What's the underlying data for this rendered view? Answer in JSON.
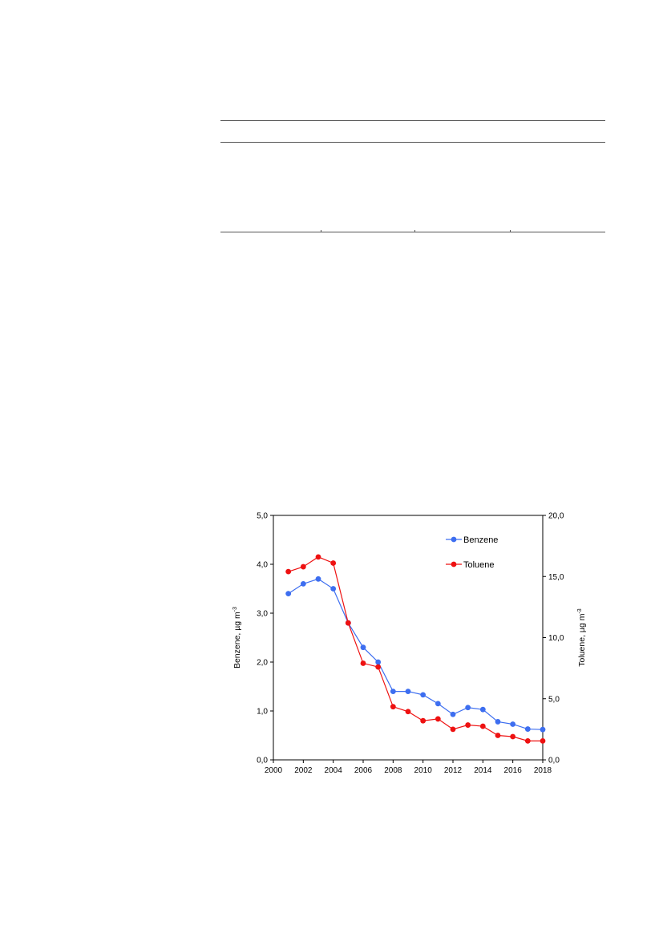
{
  "table": {
    "column_count": 4
  },
  "chart_data": {
    "type": "line",
    "x": [
      2001,
      2002,
      2003,
      2004,
      2005,
      2006,
      2007,
      2008,
      2009,
      2010,
      2011,
      2012,
      2013,
      2014,
      2015,
      2016,
      2017,
      2018
    ],
    "series": [
      {
        "name": "Benzene",
        "axis": "left",
        "color": "#3d6ef0",
        "values": [
          3.4,
          3.6,
          3.7,
          3.5,
          2.8,
          2.3,
          2.0,
          1.4,
          1.4,
          1.33,
          1.15,
          0.93,
          1.07,
          1.03,
          0.78,
          0.73,
          0.63,
          0.62
        ]
      },
      {
        "name": "Toluene",
        "axis": "right",
        "color": "#ee1111",
        "values": [
          15.4,
          15.8,
          16.6,
          16.1,
          11.2,
          7.9,
          7.6,
          4.35,
          3.95,
          3.2,
          3.35,
          2.5,
          2.85,
          2.75,
          2.0,
          1.9,
          1.55,
          1.55
        ]
      }
    ],
    "xlim": [
      2000,
      2018
    ],
    "xticks": [
      "2000",
      "2002",
      "2004",
      "2006",
      "2008",
      "2010",
      "2012",
      "2014",
      "2016",
      "2018"
    ],
    "ylim_left": [
      0,
      5
    ],
    "yticks_left": [
      "0,0",
      "1,0",
      "2,0",
      "3,0",
      "4,0",
      "5,0"
    ],
    "ylim_right": [
      0,
      20
    ],
    "yticks_right": [
      "0,0",
      "5,0",
      "10,0",
      "15,0",
      "20,0"
    ],
    "ylabel_left": "Benzene, µg m",
    "ylabel_right": "Toluene, µg m",
    "ylabel_superscript": "-3",
    "legend_position": "top-right",
    "grid": false
  }
}
